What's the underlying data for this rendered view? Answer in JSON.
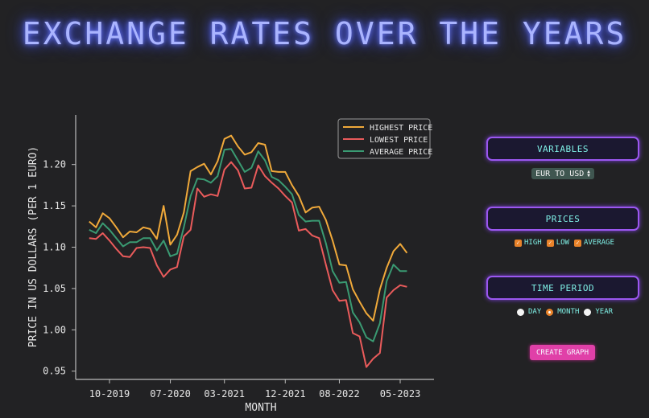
{
  "page": {
    "title": "EXCHANGE RATES OVER THE YEARS"
  },
  "chart_data": {
    "type": "line",
    "xlabel": "MONTH",
    "ylabel": "PRICE IN US DOLLARS (PER 1 EURO)",
    "ylim": [
      0.94,
      1.26
    ],
    "yticks": [
      "0.95",
      "1.00",
      "1.05",
      "1.10",
      "1.15",
      "1.20"
    ],
    "ytick_values": [
      0.95,
      1.0,
      1.05,
      1.1,
      1.15,
      1.2
    ],
    "xticks": [
      "10-2019",
      "07-2020",
      "03-2021",
      "12-2021",
      "08-2022",
      "05-2023"
    ],
    "xtick_indices": [
      5,
      14,
      22,
      31,
      39,
      48
    ],
    "x_start_index": 2,
    "x_end_index": 52,
    "legend_position": "top-right",
    "series": [
      {
        "name": "HIGHEST PRICE",
        "color": "#f0a93a",
        "values": [
          1.131,
          1.124,
          1.141,
          1.135,
          1.124,
          1.112,
          1.119,
          1.118,
          1.124,
          1.122,
          1.11,
          1.15,
          1.103,
          1.115,
          1.142,
          1.192,
          1.197,
          1.201,
          1.188,
          1.204,
          1.231,
          1.235,
          1.222,
          1.212,
          1.215,
          1.226,
          1.224,
          1.192,
          1.191,
          1.191,
          1.175,
          1.162,
          1.142,
          1.148,
          1.149,
          1.133,
          1.108,
          1.079,
          1.078,
          1.049,
          1.034,
          1.02,
          1.011,
          1.049,
          1.075,
          1.095,
          1.104,
          1.093
        ]
      },
      {
        "name": "LOWEST PRICE",
        "color": "#ea5b5b",
        "values": [
          1.111,
          1.11,
          1.117,
          1.108,
          1.098,
          1.089,
          1.088,
          1.099,
          1.1,
          1.099,
          1.078,
          1.064,
          1.073,
          1.076,
          1.113,
          1.121,
          1.171,
          1.161,
          1.164,
          1.162,
          1.194,
          1.203,
          1.193,
          1.171,
          1.172,
          1.199,
          1.186,
          1.178,
          1.171,
          1.162,
          1.154,
          1.12,
          1.122,
          1.114,
          1.111,
          1.079,
          1.048,
          1.035,
          1.036,
          0.996,
          0.992,
          0.955,
          0.965,
          0.972,
          1.039,
          1.048,
          1.054,
          1.052
        ]
      },
      {
        "name": "AVERAGE PRICE",
        "color": "#3a9a72",
        "values": [
          1.121,
          1.117,
          1.129,
          1.121,
          1.111,
          1.101,
          1.106,
          1.106,
          1.111,
          1.111,
          1.096,
          1.108,
          1.089,
          1.092,
          1.124,
          1.162,
          1.183,
          1.182,
          1.178,
          1.186,
          1.218,
          1.219,
          1.205,
          1.191,
          1.196,
          1.216,
          1.205,
          1.185,
          1.181,
          1.173,
          1.164,
          1.139,
          1.131,
          1.132,
          1.132,
          1.105,
          1.071,
          1.057,
          1.058,
          1.021,
          1.009,
          0.991,
          0.986,
          1.008,
          1.059,
          1.079,
          1.071,
          1.071
        ]
      }
    ]
  },
  "panel": {
    "variables": {
      "header": "VARIABLES",
      "selected": "EUR TO USD"
    },
    "prices": {
      "header": "PRICES",
      "options": [
        {
          "label": "HIGH",
          "checked": true
        },
        {
          "label": "LOW",
          "checked": true
        },
        {
          "label": "AVERAGE",
          "checked": true
        }
      ]
    },
    "time_period": {
      "header": "TIME PERIOD",
      "options": [
        {
          "label": "DAY",
          "selected": false
        },
        {
          "label": "MONTH",
          "selected": true
        },
        {
          "label": "YEAR",
          "selected": false
        }
      ]
    },
    "create_button": "CREATE GRAPH"
  }
}
